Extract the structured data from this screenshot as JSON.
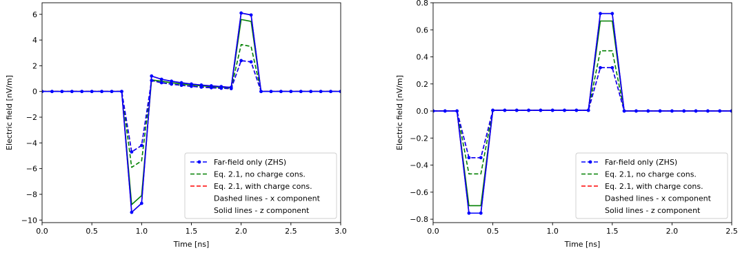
{
  "colors": {
    "far_field": "#0000ff",
    "no_charge": "#008000",
    "with_charge": "#ff0000"
  },
  "chart_data": [
    {
      "type": "line",
      "xlabel": "Time [ns]",
      "ylabel": "Electric field [nV/m]",
      "xlim": [
        0.0,
        3.0
      ],
      "ylim": [
        -10.2,
        6.9
      ],
      "xticks": [
        0.0,
        0.5,
        1.0,
        1.5,
        2.0,
        2.5,
        3.0
      ],
      "xtick_labels": [
        "0.0",
        "0.5",
        "1.0",
        "1.5",
        "2.0",
        "2.5",
        "3.0"
      ],
      "yticks": [
        6,
        4,
        2,
        0,
        -2,
        -4,
        -6,
        -8,
        -10
      ],
      "ytick_labels": [
        "6",
        "4",
        "2",
        "0",
        "−2",
        "−4",
        "−6",
        "−8",
        "−10"
      ],
      "legend_position": "lower right",
      "legend": [
        "Far-field only (ZHS)",
        "Eq. 2.1, no charge cons.",
        "Eq. 2.1, with charge cons.",
        "Dashed lines - x component",
        "Solid lines - z component"
      ],
      "x": [
        0.0,
        0.1,
        0.2,
        0.3,
        0.4,
        0.5,
        0.6,
        0.7,
        0.8,
        0.9,
        1.0,
        1.1,
        1.2,
        1.3,
        1.4,
        1.5,
        1.6,
        1.7,
        1.8,
        1.9,
        2.0,
        2.1,
        2.2,
        2.3,
        2.4,
        2.5,
        2.6,
        2.7,
        2.8,
        2.9,
        3.0
      ],
      "series": [
        {
          "name": "Far-field only (ZHS)",
          "component": "z",
          "dashed": false,
          "markers": true,
          "color": "#0000ff",
          "values": [
            0,
            0,
            0,
            0,
            0,
            0,
            0,
            0,
            0,
            -9.4,
            -8.7,
            1.2,
            0.95,
            0.8,
            0.68,
            0.58,
            0.5,
            0.44,
            0.38,
            0.32,
            6.1,
            5.95,
            0,
            0,
            0,
            0,
            0,
            0,
            0,
            0,
            0
          ]
        },
        {
          "name": "Far-field only (ZHS)",
          "component": "x",
          "dashed": true,
          "markers": true,
          "color": "#0000ff",
          "values": [
            0,
            0,
            0,
            0,
            0,
            0,
            0,
            0,
            0,
            -4.7,
            -4.2,
            0.85,
            0.68,
            0.57,
            0.48,
            0.4,
            0.34,
            0.29,
            0.25,
            0.22,
            2.4,
            2.3,
            0,
            0,
            0,
            0,
            0,
            0,
            0,
            0,
            0
          ]
        },
        {
          "name": "Eq. 2.1, no charge cons.",
          "component": "z",
          "dashed": false,
          "markers": false,
          "color": "#008000",
          "values": [
            0,
            0,
            0,
            0,
            0,
            0,
            0,
            0,
            0,
            -8.8,
            -8.1,
            0.9,
            0.8,
            0.68,
            0.58,
            0.5,
            0.44,
            0.38,
            0.33,
            0.28,
            5.6,
            5.45,
            0,
            0,
            0,
            0,
            0,
            0,
            0,
            0,
            0
          ]
        },
        {
          "name": "Eq. 2.1, no charge cons.",
          "component": "x",
          "dashed": true,
          "markers": false,
          "color": "#008000",
          "values": [
            0,
            0,
            0,
            0,
            0,
            0,
            0,
            0,
            0,
            -5.9,
            -5.4,
            0.85,
            0.68,
            0.57,
            0.48,
            0.4,
            0.34,
            0.29,
            0.25,
            0.22,
            3.65,
            3.5,
            0,
            0,
            0,
            0,
            0,
            0,
            0,
            0,
            0
          ]
        },
        {
          "name": "Eq. 2.1, with charge cons.",
          "component": "z",
          "dashed": false,
          "markers": false,
          "color": "#ff0000",
          "values": [
            0,
            0,
            0,
            0,
            0,
            0,
            0,
            0,
            0,
            -9.4,
            -8.7,
            1.2,
            0.95,
            0.8,
            0.68,
            0.58,
            0.5,
            0.44,
            0.38,
            0.32,
            6.1,
            5.95,
            0,
            0,
            0,
            0,
            0,
            0,
            0,
            0,
            0
          ]
        },
        {
          "name": "Eq. 2.1, with charge cons.",
          "component": "x",
          "dashed": true,
          "markers": false,
          "color": "#ff0000",
          "values": [
            0,
            0,
            0,
            0,
            0,
            0,
            0,
            0,
            0,
            -4.7,
            -4.2,
            0.85,
            0.68,
            0.57,
            0.48,
            0.4,
            0.34,
            0.29,
            0.25,
            0.22,
            2.4,
            2.3,
            0,
            0,
            0,
            0,
            0,
            0,
            0,
            0,
            0
          ]
        }
      ]
    },
    {
      "type": "line",
      "xlabel": "Time [ns]",
      "ylabel": "Electric field [nV/m]",
      "xlim": [
        0.0,
        2.5
      ],
      "ylim": [
        -0.825,
        0.8
      ],
      "xticks": [
        0.0,
        0.5,
        1.0,
        1.5,
        2.0,
        2.5
      ],
      "xtick_labels": [
        "0.0",
        "0.5",
        "1.0",
        "1.5",
        "2.0",
        "2.5"
      ],
      "yticks": [
        0.8,
        0.6,
        0.4,
        0.2,
        0.0,
        -0.2,
        -0.4,
        -0.6,
        -0.8
      ],
      "ytick_labels": [
        "0.8",
        "0.6",
        "0.4",
        "0.2",
        "0.0",
        "−0.2",
        "−0.4",
        "−0.6",
        "−0.8"
      ],
      "legend_position": "lower right",
      "legend": [
        "Far-field only (ZHS)",
        "Eq. 2.1, no charge cons.",
        "Eq. 2.1, with charge cons.",
        "Dashed lines - x component",
        "Solid lines - z component"
      ],
      "x": [
        0.0,
        0.1,
        0.2,
        0.3,
        0.4,
        0.5,
        0.6,
        0.7,
        0.8,
        0.9,
        1.0,
        1.1,
        1.2,
        1.3,
        1.4,
        1.5,
        1.6,
        1.7,
        1.8,
        1.9,
        2.0,
        2.1,
        2.2,
        2.3,
        2.4,
        2.5
      ],
      "series": [
        {
          "name": "Far-field only (ZHS)",
          "component": "z",
          "dashed": false,
          "markers": true,
          "color": "#0000ff",
          "values": [
            0,
            0,
            0,
            -0.755,
            -0.755,
            0.005,
            0.005,
            0.005,
            0.005,
            0.005,
            0.005,
            0.005,
            0.005,
            0.005,
            0.72,
            0.72,
            0,
            0,
            0,
            0,
            0,
            0,
            0,
            0,
            0,
            0
          ]
        },
        {
          "name": "Far-field only (ZHS)",
          "component": "x",
          "dashed": true,
          "markers": true,
          "color": "#0000ff",
          "values": [
            0,
            0,
            0,
            -0.345,
            -0.345,
            0.005,
            0.005,
            0.005,
            0.005,
            0.005,
            0.005,
            0.005,
            0.005,
            0.005,
            0.32,
            0.32,
            0,
            0,
            0,
            0,
            0,
            0,
            0,
            0,
            0,
            0
          ]
        },
        {
          "name": "Eq. 2.1, no charge cons.",
          "component": "z",
          "dashed": false,
          "markers": false,
          "color": "#008000",
          "values": [
            0,
            0,
            0,
            -0.7,
            -0.7,
            0.005,
            0.005,
            0.005,
            0.005,
            0.005,
            0.005,
            0.005,
            0.005,
            0.005,
            0.665,
            0.665,
            0,
            0,
            0,
            0,
            0,
            0,
            0,
            0,
            0,
            0
          ]
        },
        {
          "name": "Eq. 2.1, no charge cons.",
          "component": "x",
          "dashed": true,
          "markers": false,
          "color": "#008000",
          "values": [
            0,
            0,
            0,
            -0.465,
            -0.465,
            0.005,
            0.005,
            0.005,
            0.005,
            0.005,
            0.005,
            0.005,
            0.005,
            0.005,
            0.445,
            0.445,
            0,
            0,
            0,
            0,
            0,
            0,
            0,
            0,
            0,
            0
          ]
        },
        {
          "name": "Eq. 2.1, with charge cons.",
          "component": "z",
          "dashed": false,
          "markers": false,
          "color": "#ff0000",
          "values": [
            0,
            0,
            0,
            -0.755,
            -0.755,
            0.005,
            0.005,
            0.005,
            0.005,
            0.005,
            0.005,
            0.005,
            0.005,
            0.005,
            0.72,
            0.72,
            0,
            0,
            0,
            0,
            0,
            0,
            0,
            0,
            0,
            0
          ]
        },
        {
          "name": "Eq. 2.1, with charge cons.",
          "component": "x",
          "dashed": true,
          "markers": false,
          "color": "#ff0000",
          "values": [
            0,
            0,
            0,
            -0.345,
            -0.345,
            0.005,
            0.005,
            0.005,
            0.005,
            0.005,
            0.005,
            0.005,
            0.005,
            0.005,
            0.32,
            0.32,
            0,
            0,
            0,
            0,
            0,
            0,
            0,
            0,
            0,
            0
          ]
        }
      ]
    }
  ]
}
